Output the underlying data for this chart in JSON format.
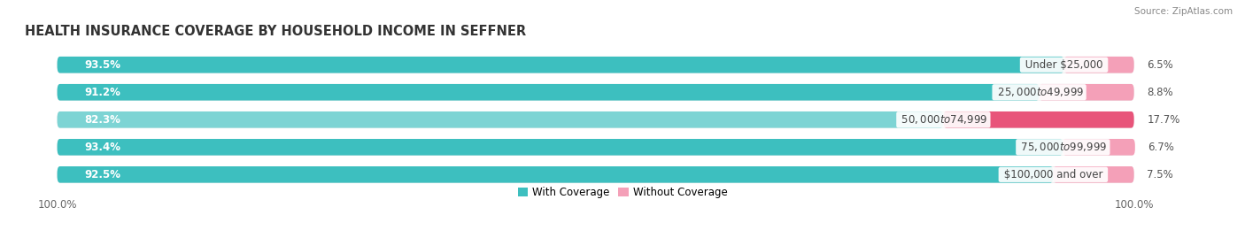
{
  "title": "HEALTH INSURANCE COVERAGE BY HOUSEHOLD INCOME IN SEFFNER",
  "source": "Source: ZipAtlas.com",
  "categories": [
    "Under $25,000",
    "$25,000 to $49,999",
    "$50,000 to $74,999",
    "$75,000 to $99,999",
    "$100,000 and over"
  ],
  "with_coverage": [
    93.5,
    91.2,
    82.3,
    93.4,
    92.5
  ],
  "without_coverage": [
    6.5,
    8.8,
    17.7,
    6.7,
    7.5
  ],
  "color_with": "#3dbfbf",
  "color_without_strong": "#e8547a",
  "color_without_light": "#f4a0b8",
  "color_with_light": "#7dd4d4",
  "bg_bar": "#e4e4e4",
  "bar_height": 0.6,
  "title_fontsize": 10.5,
  "label_fontsize": 8.5,
  "pct_fontsize": 8.5,
  "tick_fontsize": 8.5,
  "legend_fontsize": 8.5,
  "source_fontsize": 7.5
}
